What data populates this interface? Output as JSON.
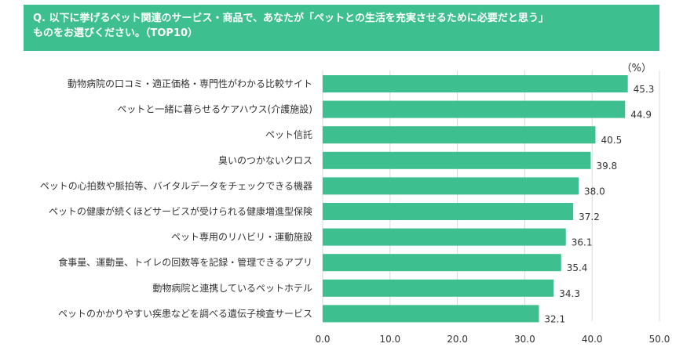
{
  "header": {
    "line1": "Q. 以下に挙げるペット関連のサービス・商品で、あなたが「ペットとの生活を充実させるために必要だと思う」",
    "line2": "ものをお選びください。（TOP10）"
  },
  "colors": {
    "bar": "#3dbf8f",
    "header_bg": "#3dbf8f",
    "gridline": "#d9d9d9"
  },
  "chart_data": {
    "type": "bar",
    "orientation": "horizontal",
    "unit_label": "（%）",
    "categories": [
      "動物病院の口コミ・適正価格・専門性がわかる比較サイト",
      "ペットと一緒に暮らせるケアハウス(介護施設)",
      "ペット信託",
      "臭いのつかないクロス",
      "ペットの心拍数や脈拍等、バイタルデータをチェックできる機器",
      "ペットの健康が続くほどサービスが受けられる健康増進型保険",
      "ペット専用のリハビリ・運動施設",
      "食事量、運動量、トイレの回数等を記録・管理できるアプリ",
      "動物病院と連携しているペットホテル",
      "ペットのかかりやすい疾患などを調べる遺伝子検査サービス"
    ],
    "values": [
      45.3,
      44.9,
      40.5,
      39.8,
      38.0,
      37.2,
      36.1,
      35.4,
      34.3,
      32.1
    ],
    "value_labels": [
      "45.3",
      "44.9",
      "40.5",
      "39.8",
      "38.0",
      "37.2",
      "36.1",
      "35.4",
      "34.3",
      "32.1"
    ],
    "xlim": [
      0,
      50
    ],
    "xticks": [
      "0.0",
      "10.0",
      "20.0",
      "30.0",
      "40.0",
      "50.0"
    ],
    "grid": true
  }
}
